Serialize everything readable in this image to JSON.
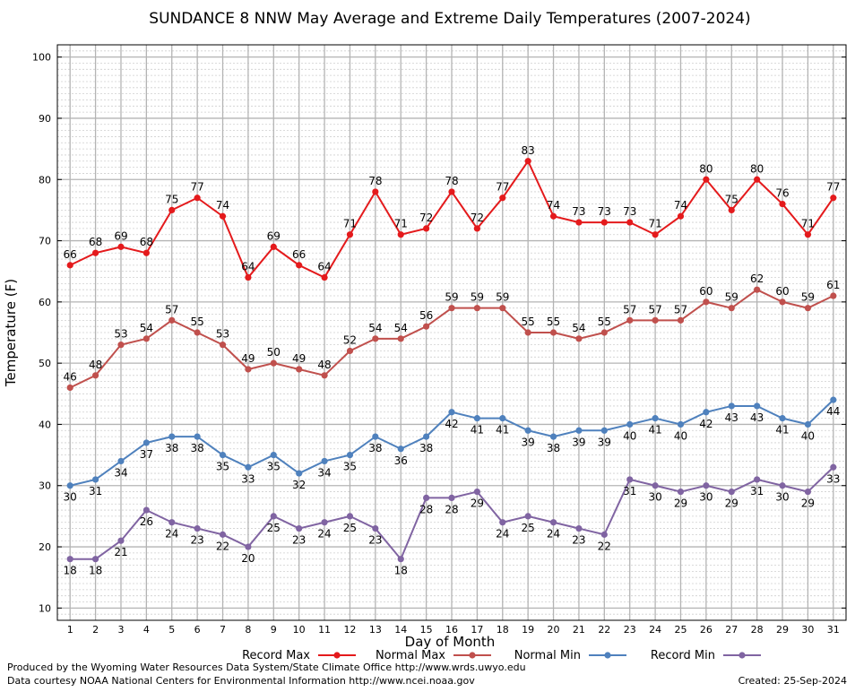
{
  "chart_data": {
    "type": "line",
    "title": "SUNDANCE 8 NNW May Average and Extreme Daily Temperatures (2007-2024)",
    "xlabel": "Day of Month",
    "ylabel": "Temperature (F)",
    "ylim": [
      8,
      102
    ],
    "yticks": [
      10,
      20,
      30,
      40,
      50,
      60,
      70,
      80,
      90,
      100
    ],
    "x": [
      1,
      2,
      3,
      4,
      5,
      6,
      7,
      8,
      9,
      10,
      11,
      12,
      13,
      14,
      15,
      16,
      17,
      18,
      19,
      20,
      21,
      22,
      23,
      24,
      25,
      26,
      27,
      28,
      29,
      30,
      31
    ],
    "grid": true,
    "legend_position": "bottom",
    "series": [
      {
        "name": "Record Max",
        "color": "#e41a1c",
        "values": [
          66,
          68,
          69,
          68,
          75,
          77,
          74,
          64,
          69,
          66,
          64,
          71,
          78,
          71,
          72,
          78,
          72,
          77,
          83,
          74,
          73,
          73,
          73,
          71,
          74,
          80,
          75,
          80,
          76,
          71,
          77
        ]
      },
      {
        "name": "Normal Max",
        "color": "#c0504d",
        "values": [
          46,
          48,
          53,
          54,
          57,
          55,
          53,
          49,
          50,
          49,
          48,
          52,
          54,
          54,
          56,
          59,
          59,
          59,
          55,
          55,
          54,
          55,
          57,
          57,
          57,
          60,
          59,
          62,
          60,
          59,
          61
        ]
      },
      {
        "name": "Normal Min",
        "color": "#4f81bd",
        "values": [
          30,
          31,
          34,
          37,
          38,
          38,
          35,
          33,
          35,
          32,
          34,
          35,
          38,
          36,
          38,
          42,
          41,
          41,
          39,
          38,
          39,
          39,
          40,
          41,
          40,
          42,
          43,
          43,
          41,
          40,
          44
        ]
      },
      {
        "name": "Record Min",
        "color": "#8064a2",
        "values": [
          18,
          18,
          21,
          26,
          24,
          23,
          22,
          20,
          25,
          23,
          24,
          25,
          23,
          18,
          28,
          28,
          29,
          24,
          25,
          24,
          23,
          22,
          31,
          30,
          29,
          30,
          29,
          31,
          30,
          29,
          33
        ]
      }
    ]
  },
  "footer": {
    "produced_by": "Produced by the Wyoming Water Resources Data System/State Climate Office http://www.wrds.uwyo.edu",
    "courtesy": "Data courtesy NOAA National Centers for Environmental Information http://www.ncei.noaa.gov",
    "created": "Created:  25-Sep-2024"
  }
}
